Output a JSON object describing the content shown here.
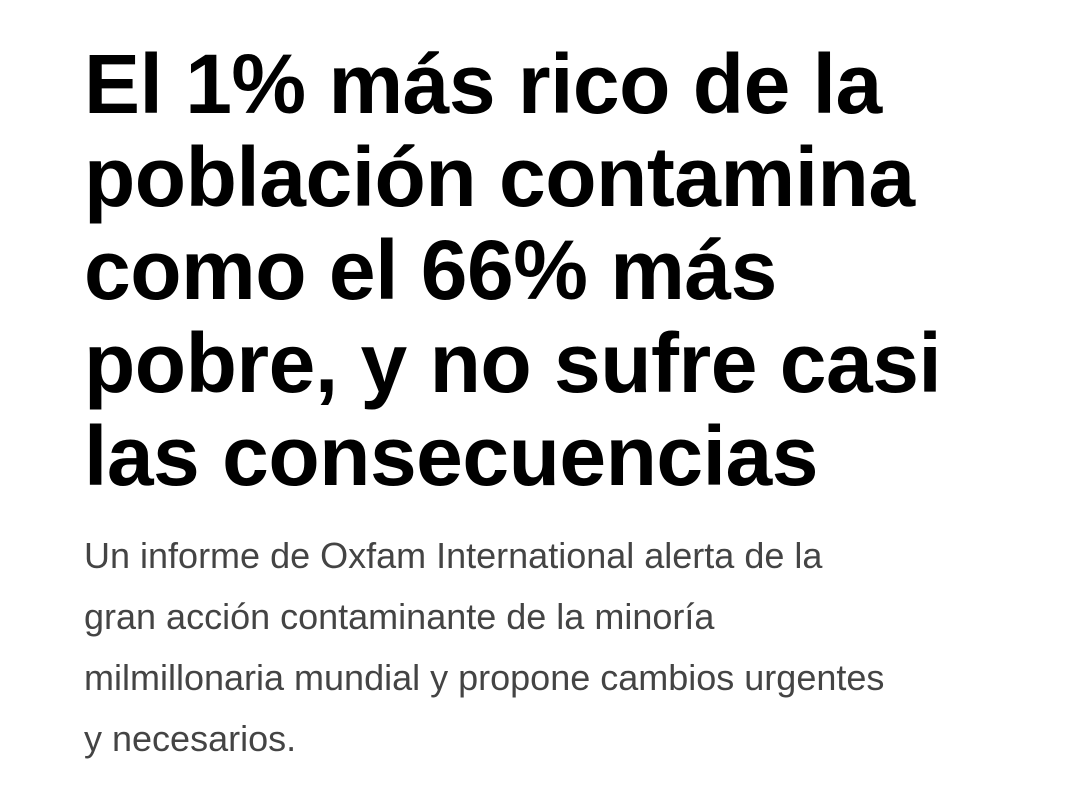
{
  "article": {
    "headline_lines": [
      "El 1% más rico de la",
      "población contamina",
      "como el 66% más",
      "pobre, y no sufre casi",
      "las consecuencias"
    ],
    "subtitle_lines": [
      "Un informe de Oxfam International alerta de la",
      "gran acción contaminante de la minoría",
      "milmillonaria mundial y propone cambios urgentes",
      "y necesarios."
    ]
  },
  "colors": {
    "background": "#ffffff",
    "headline": "#000000",
    "subtitle": "#444444"
  }
}
